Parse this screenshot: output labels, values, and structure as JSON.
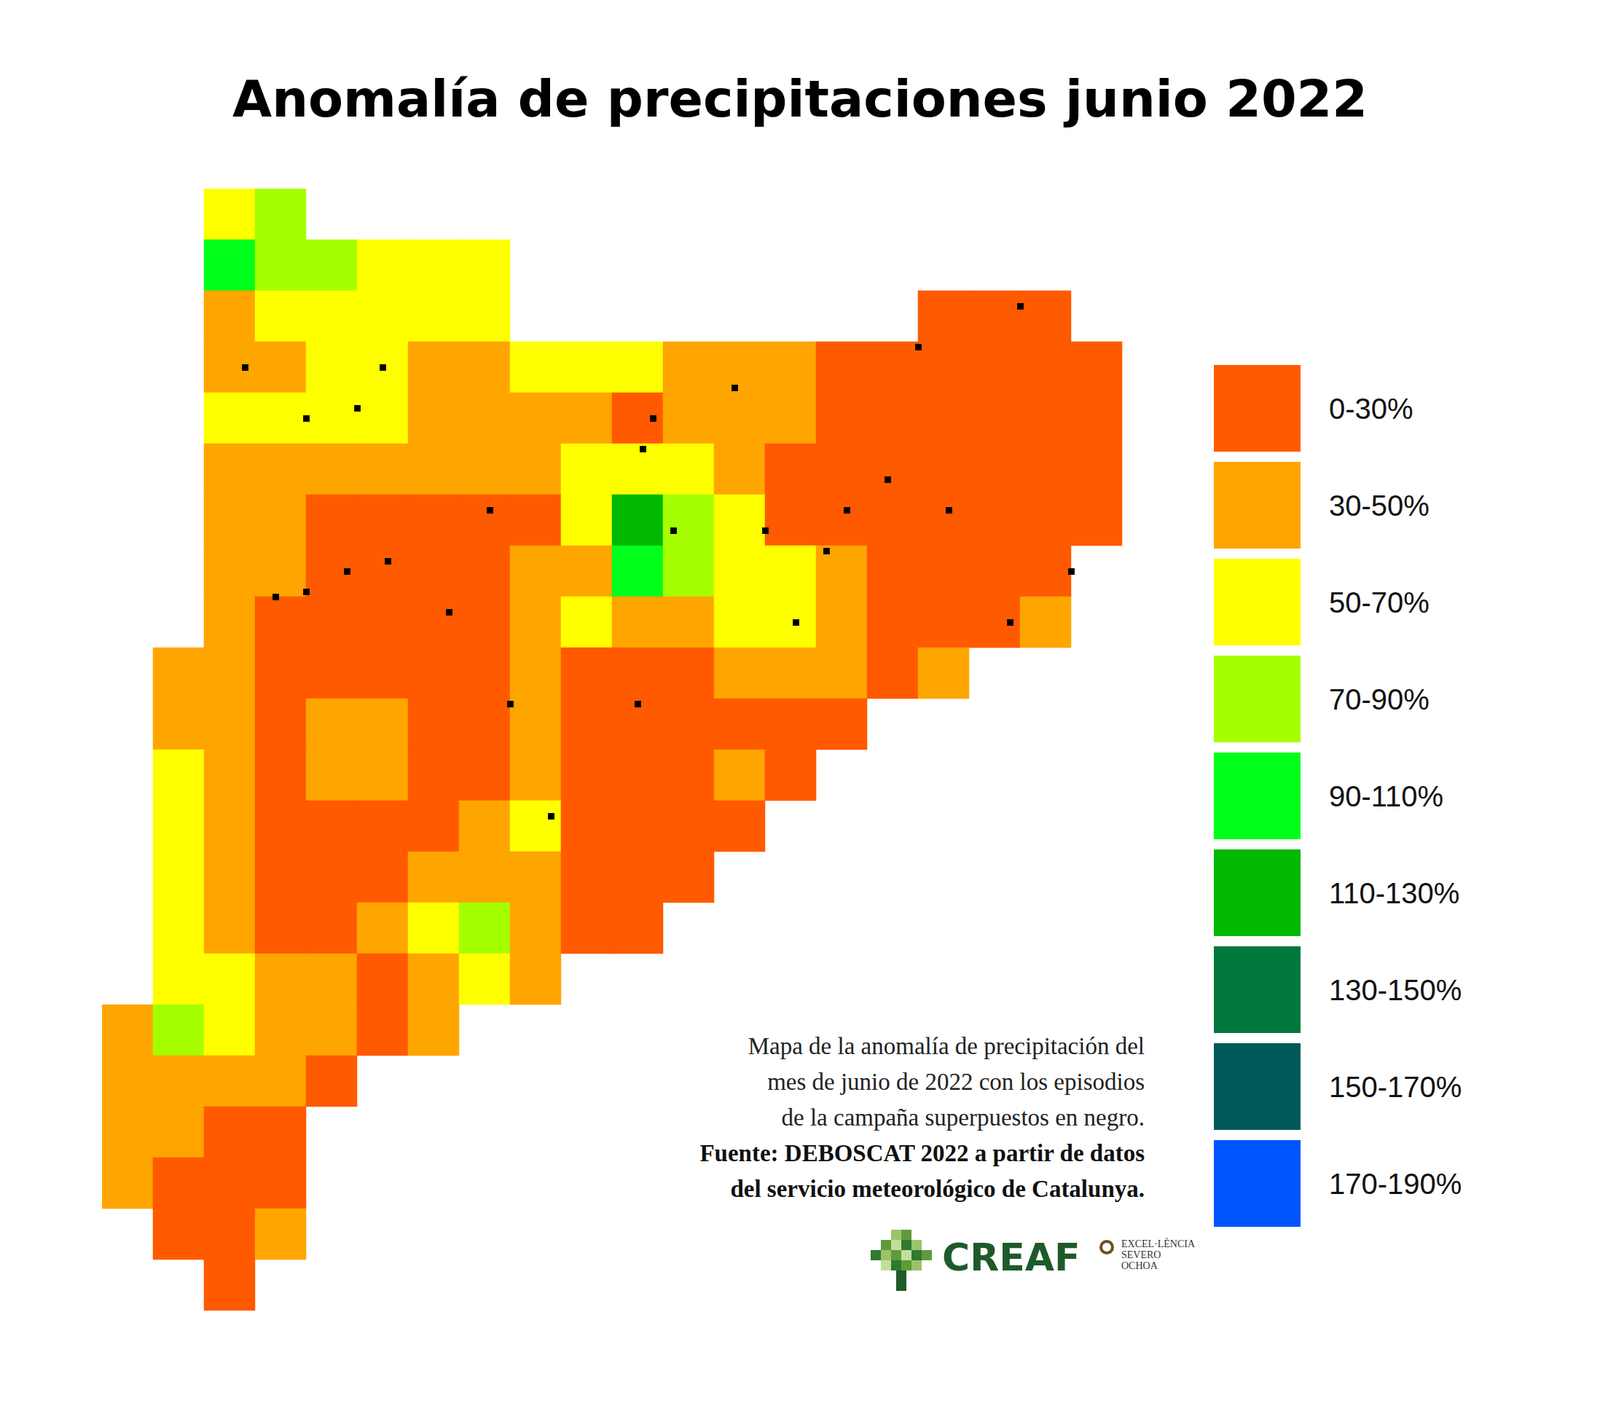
{
  "chart_data": {
    "type": "map",
    "title": "Anomalía de precipitaciones junio 2022",
    "legend": "right",
    "classes": [
      {
        "label": "0-30%",
        "color": "#ff5a00"
      },
      {
        "label": "30-50%",
        "color": "#ffa500"
      },
      {
        "label": "50-70%",
        "color": "#ffff00"
      },
      {
        "label": "70-90%",
        "color": "#a6ff00"
      },
      {
        "label": "90-110%",
        "color": "#00ff1a"
      },
      {
        "label": "110-130%",
        "color": "#00b900"
      },
      {
        "label": "130-150%",
        "color": "#00773c"
      },
      {
        "label": "150-170%",
        "color": "#005a5a"
      },
      {
        "label": "170-190%",
        "color": "#0055ff"
      }
    ],
    "cells": [
      [
        null,
        null,
        2,
        3,
        null,
        null,
        null,
        null,
        null,
        null,
        null,
        null,
        null,
        null,
        null,
        null,
        null,
        null,
        null,
        null,
        null
      ],
      [
        null,
        null,
        4,
        3,
        3,
        2,
        2,
        2,
        null,
        null,
        null,
        null,
        null,
        null,
        null,
        null,
        null,
        null,
        null,
        null,
        null
      ],
      [
        null,
        null,
        1,
        2,
        2,
        2,
        2,
        2,
        null,
        null,
        null,
        null,
        null,
        null,
        null,
        null,
        0,
        0,
        0,
        null,
        null
      ],
      [
        null,
        null,
        1,
        1,
        2,
        2,
        1,
        1,
        2,
        2,
        2,
        1,
        1,
        1,
        0,
        0,
        0,
        0,
        0,
        0,
        null
      ],
      [
        null,
        null,
        2,
        2,
        2,
        2,
        1,
        1,
        1,
        1,
        0,
        1,
        1,
        1,
        0,
        0,
        0,
        0,
        0,
        0,
        null
      ],
      [
        null,
        null,
        1,
        1,
        1,
        1,
        1,
        1,
        1,
        2,
        2,
        2,
        1,
        0,
        0,
        0,
        0,
        0,
        0,
        0,
        null
      ],
      [
        null,
        null,
        1,
        1,
        0,
        0,
        0,
        0,
        0,
        2,
        5,
        3,
        2,
        0,
        0,
        0,
        0,
        0,
        0,
        0,
        null
      ],
      [
        null,
        null,
        1,
        1,
        0,
        0,
        0,
        0,
        1,
        1,
        4,
        3,
        2,
        2,
        1,
        0,
        0,
        0,
        0,
        null,
        null
      ],
      [
        null,
        null,
        1,
        0,
        0,
        0,
        0,
        0,
        1,
        2,
        1,
        1,
        2,
        2,
        1,
        0,
        0,
        0,
        1,
        null,
        null
      ],
      [
        null,
        1,
        1,
        0,
        0,
        0,
        0,
        0,
        1,
        0,
        0,
        0,
        1,
        1,
        1,
        0,
        1,
        null,
        null,
        null,
        null
      ],
      [
        null,
        1,
        1,
        0,
        1,
        1,
        0,
        0,
        1,
        0,
        0,
        0,
        0,
        0,
        0,
        null,
        null,
        null,
        null,
        null,
        null
      ],
      [
        null,
        2,
        1,
        0,
        1,
        1,
        0,
        0,
        1,
        0,
        0,
        0,
        1,
        0,
        null,
        null,
        null,
        null,
        null,
        null,
        null
      ],
      [
        null,
        2,
        1,
        0,
        0,
        0,
        0,
        1,
        2,
        0,
        0,
        0,
        0,
        null,
        null,
        null,
        null,
        null,
        null,
        null,
        null
      ],
      [
        null,
        2,
        1,
        0,
        0,
        0,
        1,
        1,
        1,
        0,
        0,
        0,
        null,
        null,
        null,
        null,
        null,
        null,
        null,
        null,
        null
      ],
      [
        null,
        2,
        1,
        0,
        0,
        1,
        2,
        3,
        1,
        0,
        0,
        null,
        null,
        null,
        null,
        null,
        null,
        null,
        null,
        null,
        null
      ],
      [
        null,
        2,
        2,
        1,
        1,
        0,
        1,
        2,
        1,
        null,
        null,
        null,
        null,
        null,
        null,
        null,
        null,
        null,
        null,
        null,
        null
      ],
      [
        1,
        3,
        2,
        1,
        1,
        0,
        1,
        null,
        null,
        null,
        null,
        null,
        null,
        null,
        null,
        null,
        null,
        null,
        null,
        null,
        null
      ],
      [
        1,
        1,
        1,
        1,
        0,
        null,
        null,
        null,
        null,
        null,
        null,
        null,
        null,
        null,
        null,
        null,
        null,
        null,
        null,
        null,
        null
      ],
      [
        1,
        1,
        0,
        0,
        null,
        null,
        null,
        null,
        null,
        null,
        null,
        null,
        null,
        null,
        null,
        null,
        null,
        null,
        null,
        null,
        null
      ],
      [
        1,
        0,
        0,
        0,
        null,
        null,
        null,
        null,
        null,
        null,
        null,
        null,
        null,
        null,
        null,
        null,
        null,
        null,
        null,
        null,
        null
      ],
      [
        null,
        0,
        0,
        1,
        null,
        null,
        null,
        null,
        null,
        null,
        null,
        null,
        null,
        null,
        null,
        null,
        null,
        null,
        null,
        null,
        null
      ],
      [
        null,
        null,
        0,
        null,
        null,
        null,
        null,
        null,
        null,
        null,
        null,
        null,
        null,
        null,
        null,
        null,
        null,
        null,
        null,
        null,
        null
      ]
    ],
    "episodes": [
      [
        3.5,
        4
      ],
      [
        4.5,
        3.8
      ],
      [
        5,
        3
      ],
      [
        2.3,
        3
      ],
      [
        2.9,
        7.5
      ],
      [
        3.5,
        7.4
      ],
      [
        4.3,
        7
      ],
      [
        5.1,
        6.8
      ],
      [
        6.3,
        7.8
      ],
      [
        7.1,
        5.8
      ],
      [
        7.5,
        9.6
      ],
      [
        10,
        9.6
      ],
      [
        10.1,
        4.6
      ],
      [
        10.3,
        4
      ],
      [
        10.7,
        6.2
      ],
      [
        12.5,
        6.2
      ],
      [
        13.1,
        8
      ],
      [
        13.7,
        6.6
      ],
      [
        14.1,
        5.8
      ],
      [
        14.9,
        5.2
      ],
      [
        16.1,
        5.8
      ],
      [
        17.3,
        8
      ],
      [
        18.5,
        7
      ],
      [
        17.5,
        1.8
      ],
      [
        15.5,
        2.6
      ],
      [
        11.9,
        3.4
      ],
      [
        8.3,
        11.8
      ]
    ],
    "caption": [
      "Mapa de la anomalía de precipitación del",
      "mes de junio de 2022 con los episodios",
      "de la campaña superpuestos en negro."
    ],
    "source": [
      "Fuente: DEBOSCAT 2022 a partir de datos",
      "del servicio meteorológico de Catalunya."
    ],
    "logo": "CREAF",
    "logo_note": [
      "EXCEL·LÈNCIA",
      "SEVERO",
      "OCHOA"
    ]
  }
}
